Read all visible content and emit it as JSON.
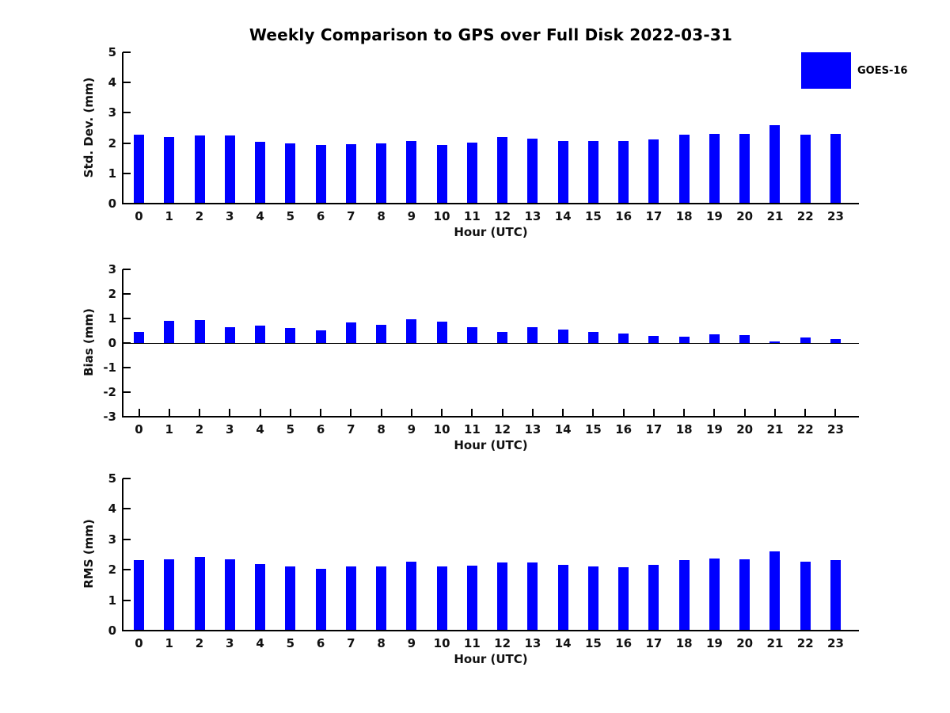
{
  "title": "Weekly Comparison to GPS over Full Disk 2022-03-31",
  "legend": {
    "label": "GOES-16",
    "color": "#0000ff"
  },
  "xlabel": "Hour (UTC)",
  "bar_color": "#0000ff",
  "chart_data": [
    {
      "type": "bar",
      "name": "std-dev",
      "ylabel": "Std. Dev. (mm)",
      "ylim": [
        0,
        5
      ],
      "yticks": [
        0,
        1,
        2,
        3,
        4,
        5
      ],
      "categories": [
        "0",
        "1",
        "2",
        "3",
        "4",
        "5",
        "6",
        "7",
        "8",
        "9",
        "10",
        "11",
        "12",
        "13",
        "14",
        "15",
        "16",
        "17",
        "18",
        "19",
        "20",
        "21",
        "22",
        "23"
      ],
      "values": [
        2.28,
        2.19,
        2.25,
        2.24,
        2.05,
        2.0,
        1.94,
        1.97,
        1.99,
        2.07,
        1.94,
        2.02,
        2.19,
        2.15,
        2.07,
        2.06,
        2.07,
        2.12,
        2.28,
        2.31,
        2.31,
        2.59,
        2.27,
        2.3
      ]
    },
    {
      "type": "bar",
      "name": "bias",
      "ylabel": "Bias (mm)",
      "ylim": [
        -3,
        3
      ],
      "yticks": [
        -3,
        -2,
        -1,
        0,
        1,
        2,
        3
      ],
      "categories": [
        "0",
        "1",
        "2",
        "3",
        "4",
        "5",
        "6",
        "7",
        "8",
        "9",
        "10",
        "11",
        "12",
        "13",
        "14",
        "15",
        "16",
        "17",
        "18",
        "19",
        "20",
        "21",
        "22",
        "23"
      ],
      "values": [
        0.45,
        0.89,
        0.93,
        0.65,
        0.7,
        0.61,
        0.51,
        0.83,
        0.74,
        0.96,
        0.86,
        0.63,
        0.44,
        0.64,
        0.54,
        0.44,
        0.38,
        0.3,
        0.26,
        0.36,
        0.33,
        0.06,
        0.22,
        0.17
      ]
    },
    {
      "type": "bar",
      "name": "rms",
      "ylabel": "RMS (mm)",
      "ylim": [
        0,
        5
      ],
      "yticks": [
        0,
        1,
        2,
        3,
        4,
        5
      ],
      "categories": [
        "0",
        "1",
        "2",
        "3",
        "4",
        "5",
        "6",
        "7",
        "8",
        "9",
        "10",
        "11",
        "12",
        "13",
        "14",
        "15",
        "16",
        "17",
        "18",
        "19",
        "20",
        "21",
        "22",
        "23"
      ],
      "values": [
        2.32,
        2.35,
        2.43,
        2.35,
        2.18,
        2.1,
        2.02,
        2.12,
        2.12,
        2.27,
        2.12,
        2.14,
        2.23,
        2.25,
        2.15,
        2.11,
        2.09,
        2.15,
        2.31,
        2.36,
        2.35,
        2.61,
        2.27,
        2.33
      ]
    }
  ]
}
